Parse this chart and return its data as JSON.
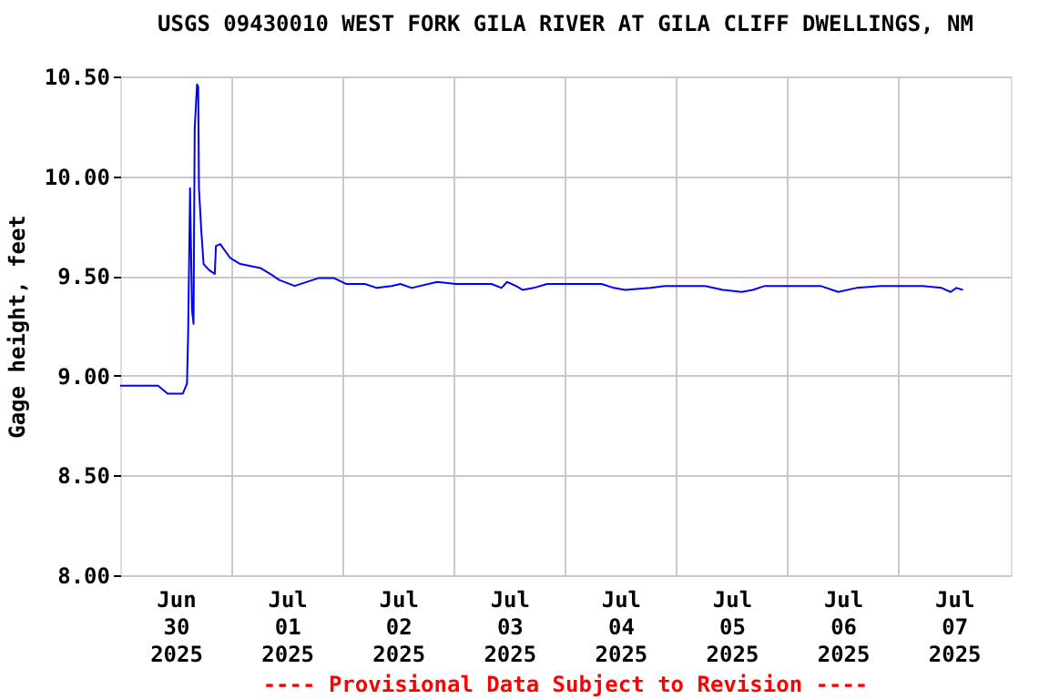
{
  "chart_data": {
    "type": "line",
    "title": "USGS 09430010 WEST FORK GILA RIVER AT GILA CLIFF DWELLINGS, NM",
    "ylabel": "Gage height, feet",
    "annotations": [
      "---- Provisional Data Subject to Revision ----"
    ],
    "x": [
      "2025-06-30T00:00",
      "2025-06-30T08:10",
      "2025-06-30T10:15",
      "2025-06-30T13:30",
      "2025-06-30T14:25",
      "2025-06-30T14:40",
      "2025-06-30T15:05",
      "2025-06-30T15:30",
      "2025-06-30T15:50",
      "2025-06-30T16:05",
      "2025-06-30T16:35",
      "2025-06-30T16:50",
      "2025-06-30T17:00",
      "2025-06-30T17:30",
      "2025-06-30T18:00",
      "2025-06-30T19:10",
      "2025-06-30T20:25",
      "2025-06-30T20:40",
      "2025-06-30T21:35",
      "2025-06-30T23:45",
      "2025-07-01T01:55",
      "2025-07-01T06:15",
      "2025-07-01T09:05",
      "2025-07-01T10:20",
      "2025-07-01T13:40",
      "2025-07-01T18:55",
      "2025-07-01T22:05",
      "2025-07-02T00:45",
      "2025-07-02T04:50",
      "2025-07-02T07:25",
      "2025-07-02T10:35",
      "2025-07-02T12:30",
      "2025-07-02T14:55",
      "2025-07-02T20:25",
      "2025-07-03T00:30",
      "2025-07-03T08:10",
      "2025-07-03T10:20",
      "2025-07-03T11:30",
      "2025-07-03T13:25",
      "2025-07-03T14:55",
      "2025-07-03T17:15",
      "2025-07-03T20:10",
      "2025-07-04T07:55",
      "2025-07-04T10:35",
      "2025-07-04T13:00",
      "2025-07-04T18:30",
      "2025-07-04T21:35",
      "2025-07-05T06:15",
      "2025-07-05T10:05",
      "2025-07-05T14:10",
      "2025-07-05T16:35",
      "2025-07-05T19:10",
      "2025-07-06T07:10",
      "2025-07-06T11:00",
      "2025-07-06T14:55",
      "2025-07-06T20:10",
      "2025-07-07T01:25",
      "2025-07-07T05:15",
      "2025-07-07T09:20",
      "2025-07-07T11:15",
      "2025-07-07T12:30",
      "2025-07-07T13:55"
    ],
    "series": [
      {
        "color": "#0000ff",
        "values": [
          8.95,
          8.95,
          8.91,
          8.91,
          8.96,
          9.21,
          9.94,
          9.33,
          9.26,
          10.24,
          10.46,
          10.45,
          9.94,
          9.73,
          9.56,
          9.53,
          9.51,
          9.65,
          9.66,
          9.59,
          9.56,
          9.54,
          9.5,
          9.48,
          9.45,
          9.49,
          9.49,
          9.46,
          9.46,
          9.44,
          9.45,
          9.46,
          9.44,
          9.47,
          9.46,
          9.46,
          9.44,
          9.47,
          9.45,
          9.43,
          9.44,
          9.46,
          9.46,
          9.44,
          9.43,
          9.44,
          9.45,
          9.45,
          9.43,
          9.42,
          9.43,
          9.45,
          9.45,
          9.42,
          9.44,
          9.45,
          9.45,
          9.45,
          9.44,
          9.42,
          9.44,
          9.43
        ]
      }
    ],
    "xlim": [
      "2025-06-30T00:00",
      "2025-07-08T00:15"
    ],
    "xticks": [
      {
        "value": "2025-06-30T12:00",
        "label": "Jun\n30\n2025"
      },
      {
        "value": "2025-07-01T00:00",
        "label": null
      },
      {
        "value": "2025-07-01T12:00",
        "label": "Jul\n01\n2025"
      },
      {
        "value": "2025-07-02T00:00",
        "label": null
      },
      {
        "value": "2025-07-02T12:00",
        "label": "Jul\n02\n2025"
      },
      {
        "value": "2025-07-03T00:00",
        "label": null
      },
      {
        "value": "2025-07-03T12:00",
        "label": "Jul\n03\n2025"
      },
      {
        "value": "2025-07-04T00:00",
        "label": null
      },
      {
        "value": "2025-07-04T12:00",
        "label": "Jul\n04\n2025"
      },
      {
        "value": "2025-07-05T00:00",
        "label": null
      },
      {
        "value": "2025-07-05T12:00",
        "label": "Jul\n05\n2025"
      },
      {
        "value": "2025-07-06T00:00",
        "label": null
      },
      {
        "value": "2025-07-06T12:00",
        "label": "Jul\n06\n2025"
      },
      {
        "value": "2025-07-07T00:00",
        "label": null
      },
      {
        "value": "2025-07-07T12:00",
        "label": "Jul\n07\n2025"
      }
    ],
    "ylim": [
      8.0,
      10.5
    ],
    "yticks": [
      {
        "value": 8.0,
        "label": "8.00"
      },
      {
        "value": 8.5,
        "label": "8.50"
      },
      {
        "value": 9.0,
        "label": "9.00"
      },
      {
        "value": 9.5,
        "label": "9.50"
      },
      {
        "value": 10.0,
        "label": "10.00"
      },
      {
        "value": 10.5,
        "label": "10.50"
      }
    ],
    "grid": true,
    "line_style": "solid"
  }
}
